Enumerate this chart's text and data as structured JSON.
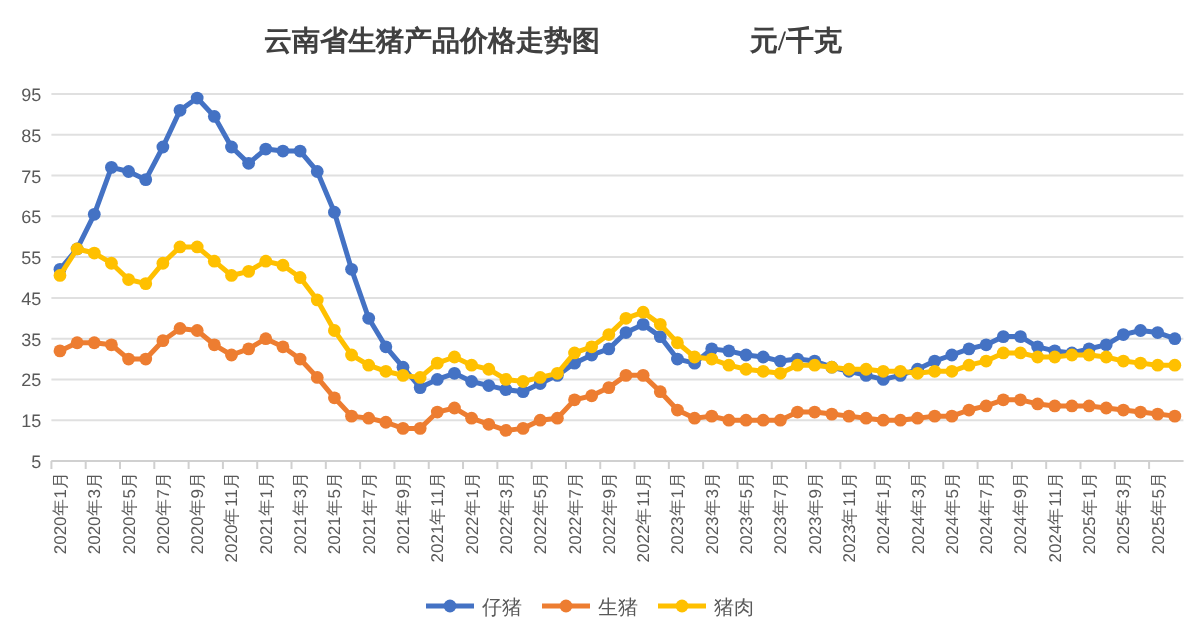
{
  "chart_data": {
    "type": "line",
    "title": "云南省生猪产品价格走势图",
    "ylabel": "元/千克",
    "categories": [
      "2020年1月",
      null,
      "2020年3月",
      null,
      "2020年5月",
      null,
      "2020年7月",
      null,
      "2020年9月",
      null,
      "2020年11月",
      null,
      "2021年1月",
      null,
      "2021年3月",
      null,
      "2021年5月",
      null,
      "2021年7月",
      null,
      "2021年9月",
      null,
      "2021年11月",
      null,
      "2022年1月",
      null,
      "2022年3月",
      null,
      "2022年5月",
      null,
      "2022年7月",
      null,
      "2022年9月",
      null,
      "2022年11月",
      null,
      "2023年1月",
      null,
      "2023年3月",
      null,
      "2023年5月",
      null,
      "2023年7月",
      null,
      "2023年9月",
      null,
      "2023年11月",
      null,
      "2024年1月",
      null,
      "2024年3月",
      null,
      "2024年5月",
      null,
      "2024年7月",
      null,
      "2024年9月",
      null,
      "2024年11月",
      null,
      "2025年1月",
      null,
      "2025年3月",
      null,
      "2025年5月",
      null
    ],
    "series": [
      {
        "name": "仔猪",
        "color": "#4472c4",
        "values": [
          52,
          57,
          65.5,
          77,
          76,
          74,
          82,
          91,
          94,
          89.5,
          82,
          78,
          81.5,
          81,
          81,
          76,
          66,
          52,
          40,
          33,
          28,
          23,
          25,
          26.5,
          24.5,
          23.5,
          22.5,
          22,
          24,
          26,
          29,
          31,
          32.5,
          36.5,
          38.5,
          35.5,
          30,
          29,
          32.5,
          32,
          31,
          30.5,
          29.5,
          30,
          29.5,
          28,
          27,
          26,
          25,
          26,
          27.5,
          29.5,
          31,
          32.5,
          33.5,
          35.5,
          35.5,
          33,
          32,
          31.5,
          32.5,
          33.5,
          36,
          37,
          36.5,
          35
        ]
      },
      {
        "name": "生猪",
        "color": "#ed7d31",
        "values": [
          32,
          34,
          34,
          33.5,
          30,
          30,
          34.5,
          37.5,
          37,
          33.5,
          31,
          32.5,
          35,
          33,
          30,
          25.5,
          20.5,
          16,
          15.5,
          14.5,
          13,
          13,
          17,
          18,
          15.5,
          14,
          12.5,
          13,
          15,
          15.5,
          20,
          21,
          23,
          26,
          26,
          22,
          17.5,
          15.5,
          16,
          15,
          15,
          15,
          15,
          17,
          17,
          16.5,
          16,
          15.5,
          15,
          15,
          15.5,
          16,
          16,
          17.5,
          18.5,
          20,
          20,
          19,
          18.5,
          18.5,
          18.5,
          18,
          17.5,
          17,
          16.5,
          16
        ]
      },
      {
        "name": "猪肉",
        "color": "#ffc000",
        "values": [
          50.5,
          57,
          56,
          53.5,
          49.5,
          48.5,
          53.5,
          57.5,
          57.5,
          54,
          50.5,
          51.5,
          54,
          53,
          50,
          44.5,
          37,
          31,
          28.5,
          27,
          26,
          25.5,
          29,
          30.5,
          28.5,
          27.5,
          25,
          24.5,
          25.5,
          26.5,
          31.5,
          33,
          36,
          40,
          41.5,
          38.5,
          34,
          30.5,
          30,
          28.5,
          27.5,
          27,
          26.5,
          28.5,
          28.5,
          28,
          27.5,
          27.5,
          27,
          27,
          26.5,
          27,
          27,
          28.5,
          29.5,
          31.5,
          31.5,
          30.5,
          30.5,
          31,
          31,
          30.5,
          29.5,
          29,
          28.5,
          28.5
        ]
      }
    ],
    "ylim": [
      5,
      95
    ],
    "yticks": [
      5,
      15,
      25,
      35,
      45,
      55,
      65,
      75,
      85,
      95
    ],
    "grid": "y",
    "legend": "bottom",
    "marker": "circle"
  }
}
